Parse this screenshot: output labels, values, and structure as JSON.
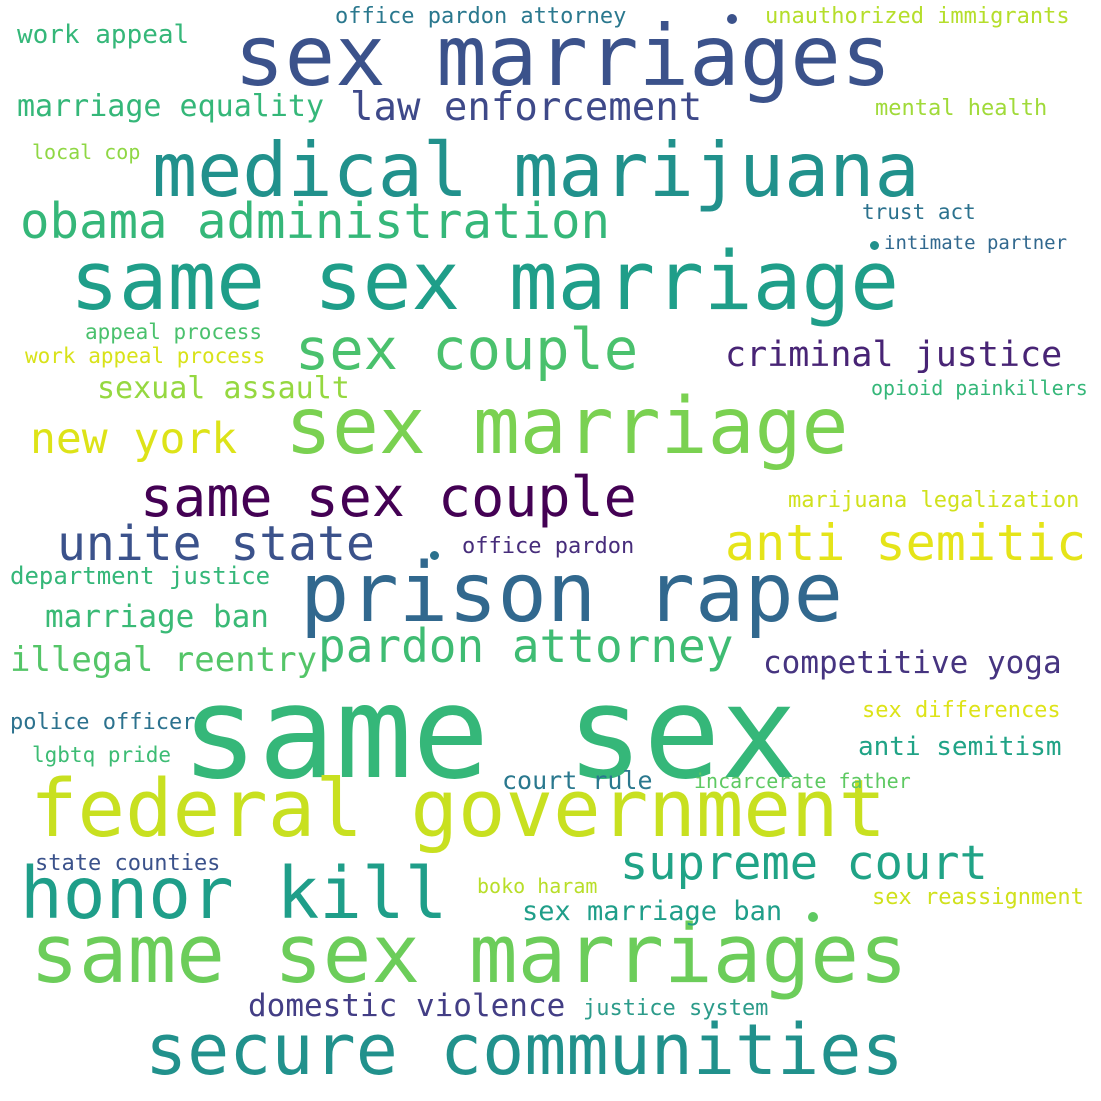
{
  "colors": {
    "background": "#ffffff",
    "navy": "#3b528b",
    "purple": "#440154",
    "indigo": "#472d7b",
    "blue": "#31688e",
    "slate": "#2c728e",
    "teal": "#21918c",
    "seagreen": "#1f9e89",
    "green": "#35b779",
    "mint": "#5ec962",
    "lime": "#7ad151",
    "yellowgreen": "#b5de2b",
    "yellow": "#dde318"
  },
  "words": [
    {
      "text": "sex marriages",
      "color": "#3b528b"
    },
    {
      "text": "medical marijuana",
      "color": "#21918c"
    },
    {
      "text": "same sex marriage",
      "color": "#1f9e89"
    },
    {
      "text": "sex marriage",
      "color": "#7ad151"
    },
    {
      "text": "same sex couple",
      "color": "#440154"
    },
    {
      "text": "prison rape",
      "color": "#31688e"
    },
    {
      "text": "same sex",
      "color": "#35b779"
    },
    {
      "text": "federal government",
      "color": "#c8e020"
    },
    {
      "text": "same sex marriages",
      "color": "#6ccd5a"
    },
    {
      "text": "secure communities",
      "color": "#21918c"
    },
    {
      "text": "honor kill",
      "color": "#1f9e89"
    },
    {
      "text": "supreme court",
      "color": "#20a386"
    },
    {
      "text": "sex couple",
      "color": "#4ac16d"
    },
    {
      "text": "obama administration",
      "color": "#35b779"
    },
    {
      "text": "law enforcement",
      "color": "#3e4989"
    },
    {
      "text": "marriage equality",
      "color": "#35b779"
    },
    {
      "text": "work appeal",
      "color": "#35b779"
    },
    {
      "text": "office pardon attorney",
      "color": "#2a788e"
    },
    {
      "text": "unauthorized immigrants",
      "color": "#b5de2b"
    },
    {
      "text": "mental health",
      "color": "#a0da39"
    },
    {
      "text": "local cop",
      "color": "#8fd744"
    },
    {
      "text": "trust act",
      "color": "#2c728e"
    },
    {
      "text": "intimate partner",
      "color": "#31688e"
    },
    {
      "text": "criminal justice",
      "color": "#482475"
    },
    {
      "text": "appeal process",
      "color": "#4ac16d"
    },
    {
      "text": "work appeal process",
      "color": "#d8e219"
    },
    {
      "text": "sexual assault",
      "color": "#95d840"
    },
    {
      "text": "opioid painkillers",
      "color": "#35b779"
    },
    {
      "text": "new york",
      "color": "#dde318"
    },
    {
      "text": "marijuana legalization",
      "color": "#d0e11c"
    },
    {
      "text": "unite state",
      "color": "#3b528b"
    },
    {
      "text": "anti semitic",
      "color": "#e5e419"
    },
    {
      "text": "office pardon",
      "color": "#472d7b"
    },
    {
      "text": "department justice",
      "color": "#35b779"
    },
    {
      "text": "marriage ban",
      "color": "#3aba76"
    },
    {
      "text": "pardon attorney",
      "color": "#3fbc73"
    },
    {
      "text": "illegal reentry",
      "color": "#54c568"
    },
    {
      "text": "competitive yoga",
      "color": "#463480"
    },
    {
      "text": "police officer",
      "color": "#2c728e"
    },
    {
      "text": "sex differences",
      "color": "#dde318"
    },
    {
      "text": "lgbtq pride",
      "color": "#3dbc74"
    },
    {
      "text": "anti semitism",
      "color": "#20a386"
    },
    {
      "text": "court rule",
      "color": "#2a788e"
    },
    {
      "text": "incarcerate father",
      "color": "#5ec962"
    },
    {
      "text": "state counties",
      "color": "#3b528b"
    },
    {
      "text": "boko haram",
      "color": "#b8de29"
    },
    {
      "text": "sex reassignment",
      "color": "#d0e11c"
    },
    {
      "text": "sex marriage ban",
      "color": "#1f9e89"
    },
    {
      "text": "domestic violence",
      "color": "#433e85"
    },
    {
      "text": "justice system",
      "color": "#2c9b8a"
    }
  ]
}
